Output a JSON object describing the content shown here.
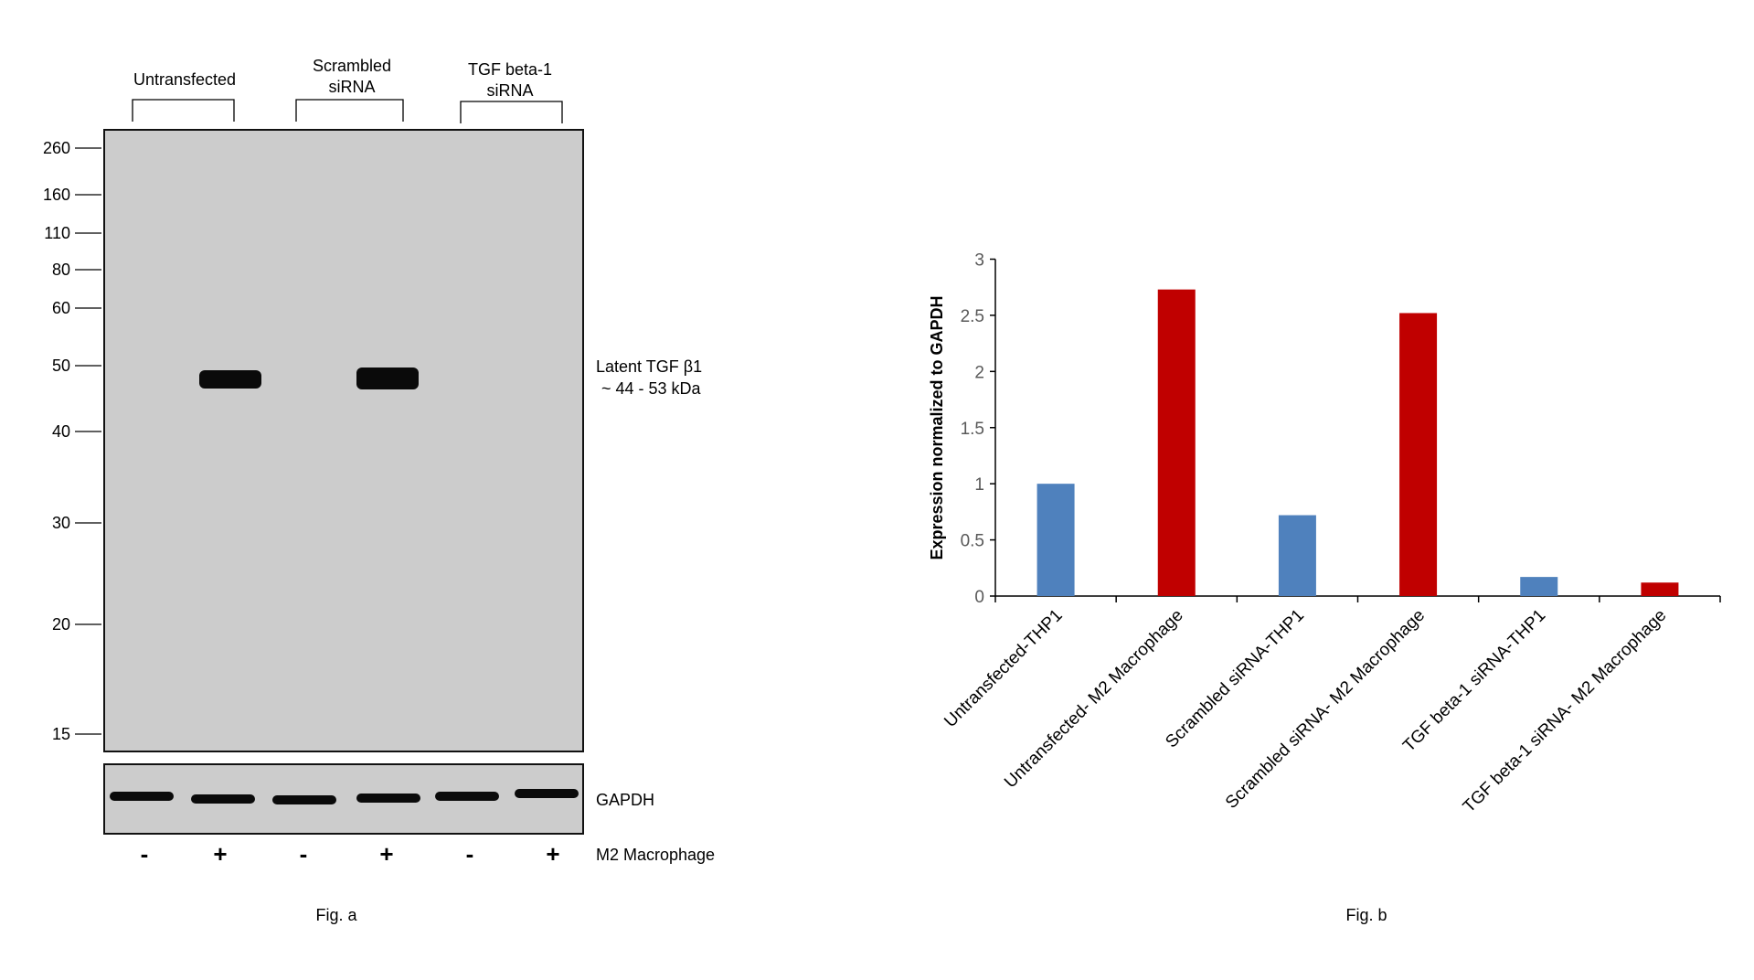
{
  "figure_a": {
    "caption": "Fig. a",
    "groups": [
      {
        "lines": [
          "Untransfected"
        ]
      },
      {
        "lines": [
          "Scrambled",
          "siRNA"
        ]
      },
      {
        "lines": [
          "TGF beta-1",
          "siRNA"
        ]
      }
    ],
    "markers": [
      "260",
      "160",
      "110",
      "80",
      "60",
      "50",
      "40",
      "30",
      "20",
      "15"
    ],
    "band_label": [
      "Latent TGF β1",
      "~ 44 - 53 kDa"
    ],
    "loading_control": "GAPDH",
    "treatment_label": "M2 Macrophage",
    "lane_signs": [
      "-",
      "+",
      "-",
      "+",
      "-",
      "+"
    ],
    "colors": {
      "membrane": "#cccccc",
      "band": "#0a0a0a"
    }
  },
  "chart_data": {
    "type": "bar",
    "title": "",
    "caption": "Fig. b",
    "xlabel": "",
    "ylabel": "Expression normalized to GAPDH",
    "ylim": [
      0,
      3
    ],
    "yticks": [
      "0",
      "0.5",
      "1",
      "1.5",
      "2",
      "2.5",
      "3"
    ],
    "grid": false,
    "categories": [
      "Untransfected-THP1",
      "Untransfected- M2 Macrophage",
      "Scrambled siRNA-THP1",
      "Scrambled siRNA- M2 Macrophage",
      "TGF beta-1 siRNA-THP1",
      "TGF beta-1 siRNA- M2 Macrophage"
    ],
    "values": [
      1.0,
      2.73,
      0.72,
      2.52,
      0.17,
      0.12
    ],
    "bar_colors": [
      "#4F81BD",
      "#C00000",
      "#4F81BD",
      "#C00000",
      "#4F81BD",
      "#C00000"
    ]
  }
}
